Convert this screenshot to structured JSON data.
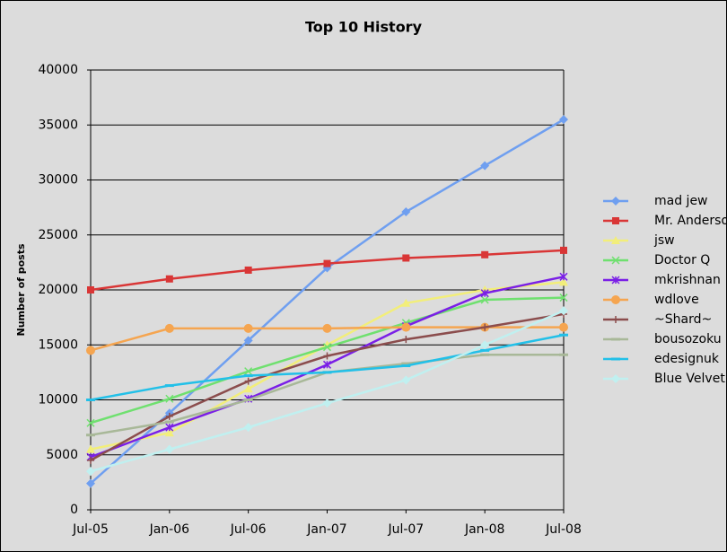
{
  "chart_data": {
    "type": "line",
    "title": "Top 10 History",
    "y_label": "Number of posts",
    "categories": [
      "Jul-05",
      "Jan-06",
      "Jul-06",
      "Jan-07",
      "Jul-07",
      "Jan-08",
      "Jul-08"
    ],
    "ylim": [
      0,
      40000
    ],
    "yticks": [
      0,
      5000,
      10000,
      15000,
      20000,
      25000,
      30000,
      35000,
      40000
    ],
    "grid": true,
    "legend": "right",
    "series": [
      {
        "name": "mad jew",
        "color": "#6f9ff0",
        "marker": "diamond",
        "values": [
          2400,
          8800,
          15400,
          22000,
          27100,
          31300,
          35500
        ]
      },
      {
        "name": "Mr. Anderson",
        "color": "#d93636",
        "marker": "square",
        "values": [
          20000,
          21000,
          21800,
          22400,
          22900,
          23200,
          23600
        ]
      },
      {
        "name": "jsw",
        "color": "#f2ee7a",
        "marker": "triangle",
        "values": [
          5500,
          7000,
          11000,
          15000,
          18800,
          20000,
          20700
        ]
      },
      {
        "name": "Doctor Q",
        "color": "#6fe06f",
        "marker": "x",
        "values": [
          7900,
          10100,
          12600,
          14800,
          17000,
          19100,
          19300
        ]
      },
      {
        "name": "mkrishnan",
        "color": "#7a1fe6",
        "marker": "star",
        "values": [
          4800,
          7500,
          10100,
          13200,
          16700,
          19700,
          21200
        ]
      },
      {
        "name": "wdlove",
        "color": "#f5a550",
        "marker": "circle",
        "values": [
          14500,
          16500,
          16500,
          16500,
          16600,
          16600,
          16600
        ]
      },
      {
        "name": "~Shard~",
        "color": "#8b4d4d",
        "marker": "plus",
        "values": [
          4500,
          8500,
          11700,
          14000,
          15500,
          16600,
          17800
        ]
      },
      {
        "name": "bousozoku",
        "color": "#a8b898",
        "marker": "dash",
        "values": [
          6800,
          8000,
          10000,
          12500,
          13300,
          14100,
          14100
        ]
      },
      {
        "name": "edesignuk",
        "color": "#22c0e8",
        "marker": "dash",
        "values": [
          10000,
          11300,
          12200,
          12500,
          13100,
          14500,
          15900
        ]
      },
      {
        "name": "Blue Velvet",
        "color": "#c0f0f0",
        "marker": "diamond",
        "values": [
          3500,
          5500,
          7500,
          9700,
          11800,
          15000,
          18100
        ]
      }
    ]
  }
}
